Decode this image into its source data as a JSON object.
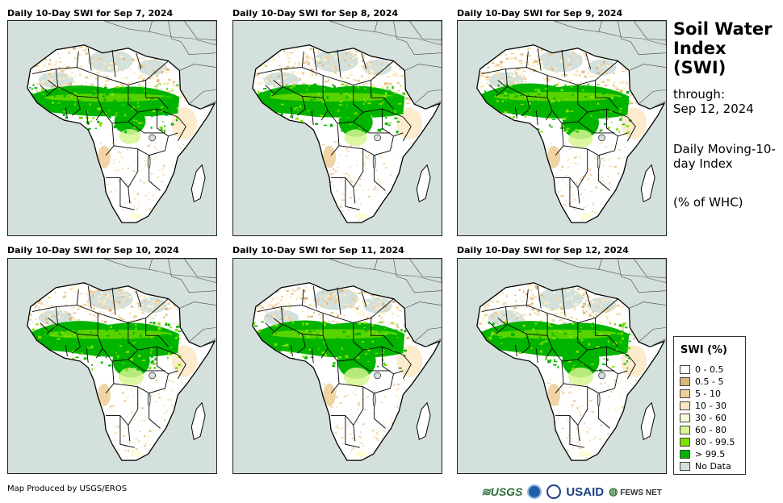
{
  "panels": [
    {
      "title": "Daily 10-Day SWI for Sep 7, 2024"
    },
    {
      "title": "Daily 10-Day SWI for Sep 8, 2024"
    },
    {
      "title": "Daily 10-Day SWI for Sep 9, 2024"
    },
    {
      "title": "Daily 10-Day SWI for Sep 10, 2024"
    },
    {
      "title": "Daily 10-Day SWI for Sep 11, 2024"
    },
    {
      "title": "Daily 10-Day SWI for Sep 12, 2024"
    }
  ],
  "sidebar": {
    "title": "Soil Water Index (SWI)",
    "through_label": "through:",
    "through_date": "Sep 12, 2024",
    "description": "Daily Moving-10-day Index",
    "units": "(% of WHC)"
  },
  "legend": {
    "title": "SWI (%)",
    "items": [
      {
        "label": "0 - 0.5",
        "color": "#ffffff"
      },
      {
        "label": "0.5 - 5",
        "color": "#dcb87e"
      },
      {
        "label": "5 - 10",
        "color": "#efcf9c"
      },
      {
        "label": "10 - 30",
        "color": "#fbe6c0"
      },
      {
        "label": "30 - 60",
        "color": "#fcfcd8"
      },
      {
        "label": "60 - 80",
        "color": "#d6f592"
      },
      {
        "label": "80 - 99.5",
        "color": "#7ee000"
      },
      {
        "label": "> 99.5",
        "color": "#00b400"
      },
      {
        "label": "No Data",
        "color": "#d3e0db"
      }
    ]
  },
  "footer": {
    "credit": "Map Produced by USGS/EROS",
    "logos": {
      "usgs": "USGS",
      "usaid": "USAID",
      "fews": "FEWS NET"
    }
  },
  "map": {
    "wet_intensity": [
      0.55,
      0.72,
      0.88,
      0.93,
      1.0,
      0.92
    ]
  }
}
